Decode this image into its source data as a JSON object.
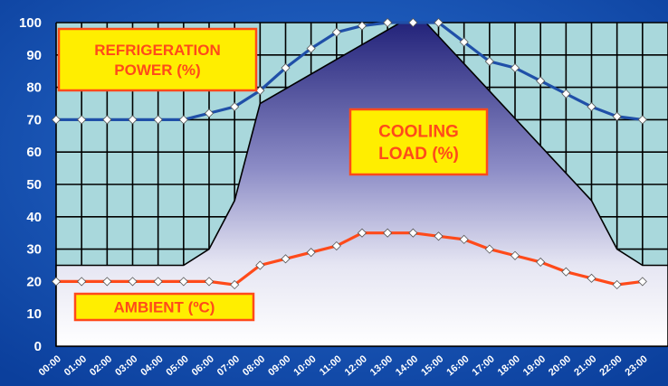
{
  "chart_data": {
    "type": "line",
    "categories": [
      "00:00",
      "01:00",
      "02:00",
      "03:00",
      "04:00",
      "05:00",
      "06:00",
      "07:00",
      "08:00",
      "09:00",
      "10:00",
      "11:00",
      "12:00",
      "13:00",
      "14:00",
      "15:00",
      "16:00",
      "17:00",
      "18:00",
      "19:00",
      "20:00",
      "21:00",
      "22:00",
      "23:00"
    ],
    "ylim": [
      0,
      100
    ],
    "yticks": [
      0,
      10,
      20,
      30,
      40,
      50,
      60,
      70,
      80,
      90,
      100
    ],
    "grid": true,
    "series": [
      {
        "name": "REFRIGERATION POWER (%)",
        "color": "#1f4fa8",
        "marker": "diamond",
        "values": [
          70,
          70,
          70,
          70,
          70,
          70,
          72,
          74,
          79,
          86,
          92,
          97,
          99,
          100,
          100,
          100,
          94,
          88,
          86,
          82,
          78,
          74,
          71,
          70
        ]
      },
      {
        "name": "AMBIENT (ºC)",
        "color": "#ff4a1a",
        "marker": "diamond",
        "values": [
          20,
          20,
          20,
          20,
          20,
          20,
          20,
          19,
          25,
          27,
          29,
          31,
          35,
          35,
          35,
          34,
          33,
          30,
          28,
          26,
          23,
          21,
          19,
          20
        ]
      }
    ],
    "area": {
      "name": "COOLING LOAD (%)",
      "x": [
        0,
        5,
        6,
        7,
        8,
        13.5,
        14.5,
        21,
        22,
        23
      ],
      "y": [
        25,
        25,
        30,
        45,
        75,
        100,
        100,
        45,
        30,
        25
      ]
    },
    "labels": {
      "refrigeration": [
        "REFRIGERATION",
        "POWER (%)"
      ],
      "cooling": [
        "COOLING",
        "LOAD (%)"
      ],
      "ambient": "AMBIENT (ºC)"
    },
    "colors": {
      "background": "#0b3f9c",
      "grid_fill": "#a9d8dc",
      "grid_line": "#000000",
      "label_box": "#ffee00",
      "label_border": "#ff4a1a",
      "label_text": "#ff4a1a",
      "axis_text": "#ffffff"
    }
  }
}
